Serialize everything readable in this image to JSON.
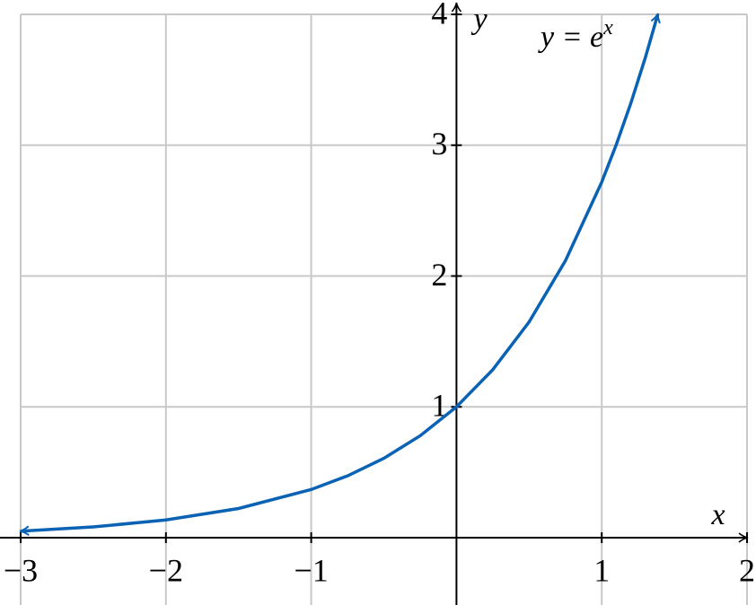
{
  "chart_data": {
    "type": "line",
    "x_label": "x",
    "y_label": "y",
    "annotation": {
      "text": "y = e",
      "superscript": "x"
    },
    "x": [
      -3,
      -2.5,
      -2,
      -1.5,
      -1,
      -0.75,
      -0.5,
      -0.25,
      0,
      0.25,
      0.5,
      0.75,
      1,
      1.1,
      1.2,
      1.3,
      1.386
    ],
    "series": [
      {
        "name": "y = e^x",
        "color": "#0a62b5",
        "values": [
          0.0498,
          0.0821,
          0.1353,
          0.2231,
          0.3679,
          0.4724,
          0.6065,
          0.7788,
          1,
          1.284,
          1.6487,
          2.117,
          2.7183,
          3.0042,
          3.3201,
          3.6693,
          4.0
        ]
      }
    ],
    "xlim": [
      -3,
      2
    ],
    "ylim": [
      0,
      4
    ],
    "xticks": [
      {
        "value": -3,
        "label": "−3"
      },
      {
        "value": -2,
        "label": "−2"
      },
      {
        "value": -1,
        "label": "−1"
      },
      1,
      2
    ],
    "yticks": [
      1,
      2,
      3,
      4
    ],
    "grid": true
  }
}
